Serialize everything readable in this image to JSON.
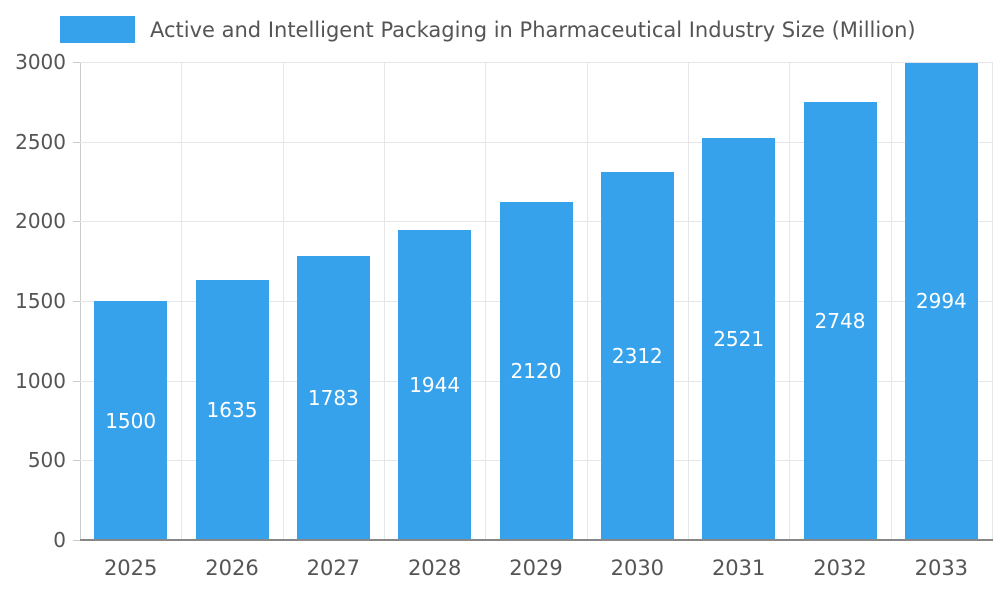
{
  "chart_data": {
    "type": "bar",
    "title": "Active and Intelligent Packaging in Pharmaceutical Industry Size (Million)",
    "categories": [
      "2025",
      "2026",
      "2027",
      "2028",
      "2029",
      "2030",
      "2031",
      "2032",
      "2033"
    ],
    "values": [
      1500,
      1635,
      1783,
      1944,
      2120,
      2312,
      2521,
      2748,
      2994
    ],
    "xlabel": "",
    "ylabel": "",
    "ylim": [
      0,
      3000
    ],
    "yticks": [
      0,
      500,
      1000,
      1500,
      2000,
      2500,
      3000
    ],
    "grid": true,
    "legend_position": "top-left",
    "bar_color": "#36A2EB",
    "bar_value_label_color": "#ffffff",
    "axis_text_color": "#555555",
    "grid_color": "#e6e6e6"
  }
}
